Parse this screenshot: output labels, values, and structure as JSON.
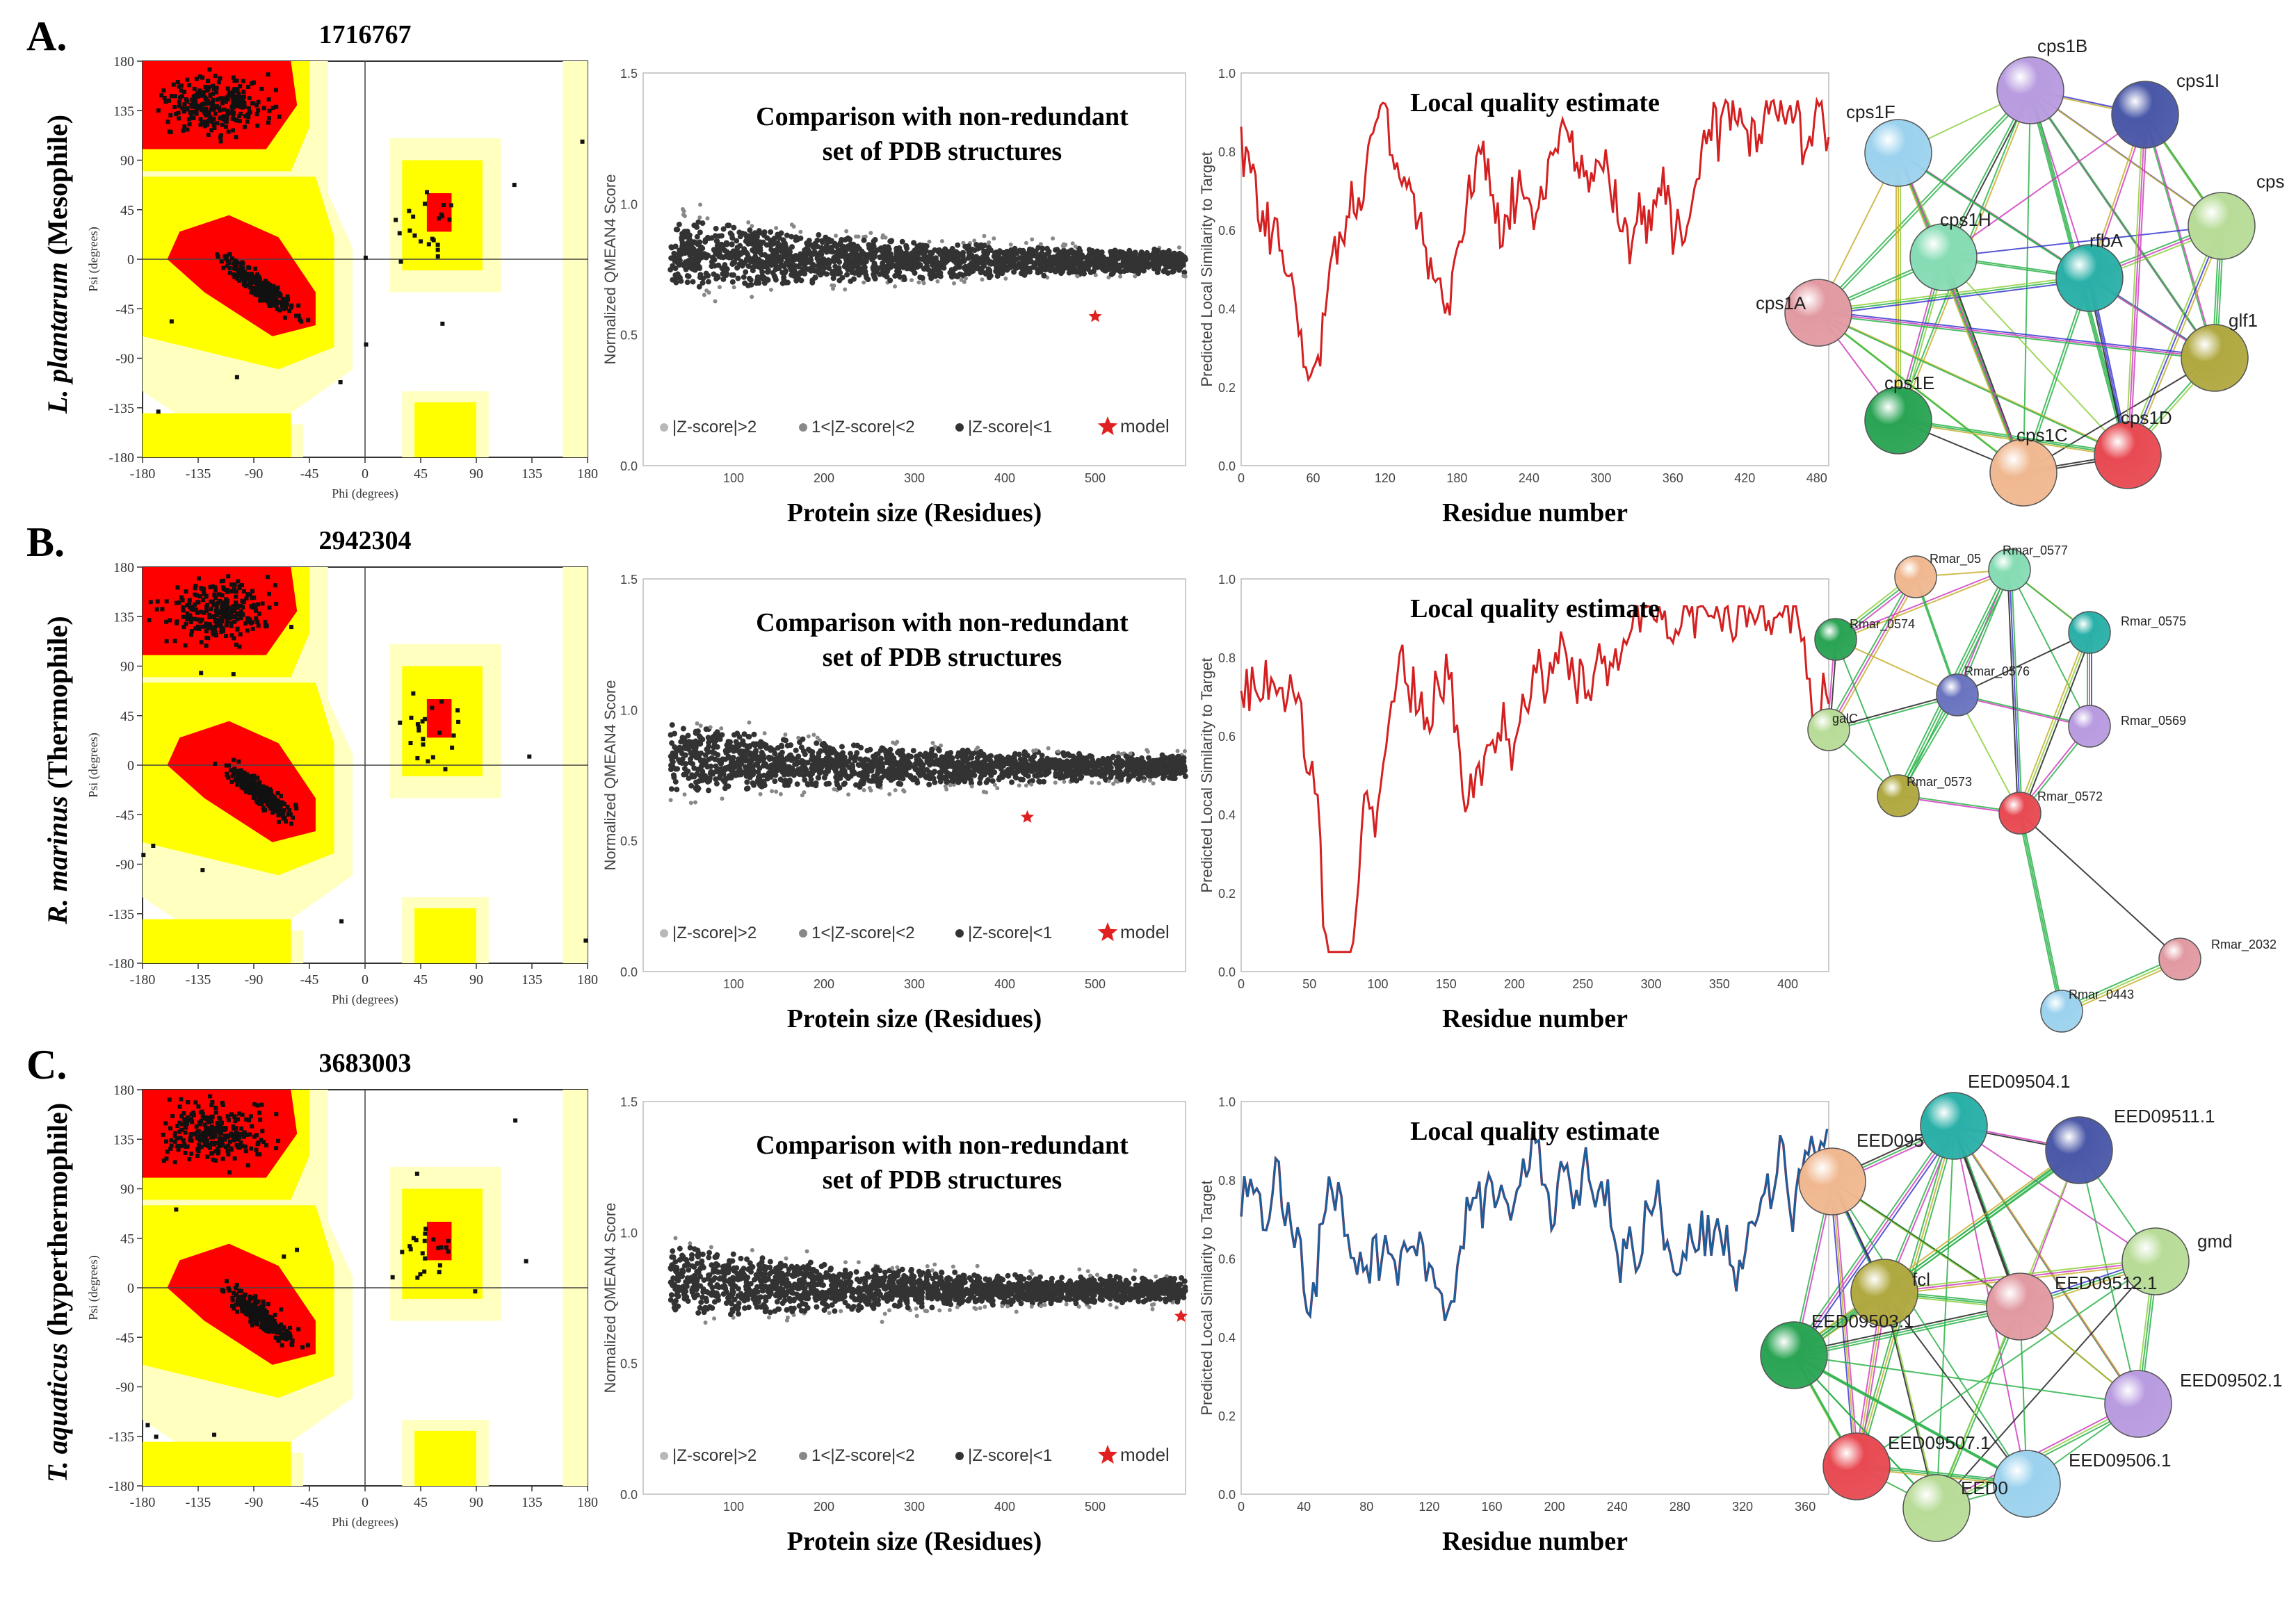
{
  "colors": {
    "core": "#ff0000",
    "allowed": "#ffff00",
    "generous": "#ffffc0",
    "scatter_dark": "#333333",
    "scatter_mid": "#888888",
    "scatter_light": "#b8b8b8",
    "line_red": "#d42020",
    "line_blue": "#1a5f9e",
    "edge_green": "#2db34a"
  },
  "icons": {
    "model": "star-icon",
    "legend_dot": "circle-icon"
  },
  "rama": {
    "xlabel": "Phi (degrees)",
    "ylabel": "Psi (degrees)",
    "xticks": [
      "-180",
      "-135",
      "-90",
      "-45",
      "0",
      "45",
      "90",
      "135",
      "180"
    ],
    "yticks": [
      "180",
      "135",
      "90",
      "45",
      "0",
      "-45",
      "-90",
      "-135",
      "-180"
    ]
  },
  "qmean": {
    "title1": "Comparison with non-redundant",
    "title2": "set of PDB structures",
    "ylabel": "Normalized QMEAN4 Score",
    "xlabel": "Protein size (Residues)",
    "yticks": [
      "1.5",
      "1.0",
      "0.5",
      "0.0"
    ],
    "xticks": [
      "100",
      "200",
      "300",
      "400",
      "500"
    ],
    "legend": [
      "|Z-score|>2",
      "1<|Z-score|<2",
      "|Z-score|<1",
      "model"
    ]
  },
  "local": {
    "title": "Local quality estimate",
    "ylabel": "Predicted Local Similarity to Target",
    "xlabel": "Residue number",
    "yticks": [
      "1.0",
      "0.8",
      "0.6",
      "0.4",
      "0.2",
      "0.0"
    ]
  },
  "panels": [
    {
      "letter": "A.",
      "id": "1716767",
      "organism": "L. plantarum",
      "habitat": "(Mesophile)",
      "model_x": 500,
      "model_y": 0.57,
      "local_xmax": 490,
      "local_xticks": [
        "0",
        "60",
        "120",
        "180",
        "240",
        "300",
        "360",
        "420",
        "480"
      ],
      "line": "red",
      "network": {
        "nodes": [
          "cps1B",
          "cps1I",
          "cps1F",
          "cps",
          "cps1H",
          "rfbA",
          "cps1A",
          "glf1",
          "cps1E",
          "cps1C",
          "cps1D"
        ],
        "colors": [
          "#b89be0",
          "#4a58a8",
          "#9cd2ee",
          "#b8dc98",
          "#86dcb4",
          "#2ab0a8",
          "#e29aa2",
          "#b0a840",
          "#2aa454",
          "#f0b890",
          "#e84a52"
        ]
      }
    },
    {
      "letter": "B.",
      "id": "2942304",
      "organism": "R. marinus",
      "habitat": "(Thermophile)",
      "model_x": 425,
      "model_y": 0.59,
      "local_xmax": 430,
      "local_xticks": [
        "0",
        "50",
        "100",
        "150",
        "200",
        "250",
        "300",
        "350",
        "400"
      ],
      "line": "red",
      "network": {
        "nodes": [
          "Rmar_0577",
          "Rmar_05",
          "Rmar_0575",
          "Rmar_0574",
          "Rmar_0576",
          "Rmar_0569",
          "galC",
          "Rmar_0573",
          "Rmar_0572",
          "Rmar_2032",
          "Rmar_0443"
        ],
        "colors": [
          "#86dcb4",
          "#f0b890",
          "#2ab0a8",
          "#2aa454",
          "#6a74c0",
          "#b89be0",
          "#b8dc98",
          "#b0a840",
          "#e84a52",
          "#e29aa2",
          "#9cd2ee"
        ]
      }
    },
    {
      "letter": "C.",
      "id": "3683003",
      "organism": "T. aquaticus",
      "habitat": "(hyperthermophile)",
      "model_x": 595,
      "model_y": 0.68,
      "local_xmax": 375,
      "local_xticks": [
        "0",
        "40",
        "80",
        "120",
        "160",
        "200",
        "240",
        "280",
        "320",
        "360"
      ],
      "line": "blue",
      "network": {
        "nodes": [
          "EED09504.1",
          "EED09511.1",
          "EED095",
          "gmd",
          "fcl",
          "EED09512.1",
          "EED09503.1",
          "EED09502.1",
          "EED09507.1",
          "EED09506.1",
          "EED0"
        ],
        "colors": [
          "#2ab0a8",
          "#4a58a8",
          "#f0b890",
          "#b8dc98",
          "#b0a840",
          "#e29aa2",
          "#2aa454",
          "#b89be0",
          "#e84a52",
          "#9cd2ee",
          "#b8dc98"
        ]
      }
    }
  ]
}
